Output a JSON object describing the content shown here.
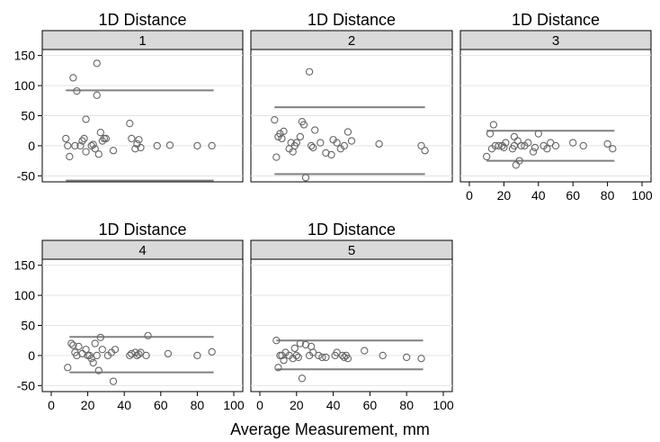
{
  "xlabel": "Average Measurement, mm",
  "chart_data": {
    "type": "scatter",
    "xlabel": "Average Measurement, mm",
    "ylabel": "",
    "xlim": [
      0,
      100
    ],
    "ylim": [
      -60,
      160
    ],
    "xticks": [
      "0",
      "20",
      "40",
      "60",
      "80",
      "100"
    ],
    "yticks": [
      "-50",
      "0",
      "50",
      "100",
      "150"
    ],
    "grid": "horizontal",
    "panels": [
      {
        "title": "1D Distance",
        "strip": "1",
        "upper_limit": 92,
        "lower_limit": -58,
        "line_x": [
          8,
          89
        ],
        "points": [
          [
            8,
            12
          ],
          [
            9,
            0
          ],
          [
            10,
            -18
          ],
          [
            12,
            113
          ],
          [
            13,
            0
          ],
          [
            14,
            91
          ],
          [
            16,
            0
          ],
          [
            17,
            8
          ],
          [
            18,
            12
          ],
          [
            19,
            44
          ],
          [
            19,
            -10
          ],
          [
            22,
            0
          ],
          [
            23,
            2
          ],
          [
            24,
            -5
          ],
          [
            25,
            137
          ],
          [
            25,
            84
          ],
          [
            26,
            -14
          ],
          [
            27,
            22
          ],
          [
            28,
            8
          ],
          [
            29,
            12
          ],
          [
            30,
            12
          ],
          [
            34,
            -8
          ],
          [
            43,
            37
          ],
          [
            44,
            12
          ],
          [
            46,
            -5
          ],
          [
            47,
            3
          ],
          [
            48,
            10
          ],
          [
            49,
            -3
          ],
          [
            58,
            0
          ],
          [
            65,
            1
          ],
          [
            80,
            0
          ],
          [
            88,
            0
          ]
        ]
      },
      {
        "title": "1D Distance",
        "strip": "2",
        "upper_limit": 64,
        "lower_limit": -47,
        "line_x": [
          8,
          90
        ],
        "points": [
          [
            8,
            43
          ],
          [
            9,
            -19
          ],
          [
            10,
            15
          ],
          [
            11,
            20
          ],
          [
            12,
            12
          ],
          [
            13,
            24
          ],
          [
            16,
            -5
          ],
          [
            17,
            5
          ],
          [
            18,
            -10
          ],
          [
            19,
            0
          ],
          [
            20,
            5
          ],
          [
            22,
            15
          ],
          [
            23,
            40
          ],
          [
            24,
            35
          ],
          [
            25,
            -53
          ],
          [
            27,
            123
          ],
          [
            28,
            0
          ],
          [
            29,
            -3
          ],
          [
            30,
            26
          ],
          [
            33,
            5
          ],
          [
            36,
            -12
          ],
          [
            39,
            -15
          ],
          [
            40,
            10
          ],
          [
            42,
            5
          ],
          [
            44,
            -5
          ],
          [
            46,
            0
          ],
          [
            48,
            23
          ],
          [
            50,
            8
          ],
          [
            65,
            3
          ],
          [
            88,
            0
          ],
          [
            90,
            -8
          ]
        ]
      },
      {
        "title": "1D Distance",
        "strip": "3",
        "upper_limit": 25,
        "lower_limit": -25,
        "line_x": [
          10,
          84
        ],
        "points": [
          [
            10,
            -18
          ],
          [
            12,
            20
          ],
          [
            13,
            -5
          ],
          [
            14,
            35
          ],
          [
            15,
            0
          ],
          [
            17,
            0
          ],
          [
            19,
            0
          ],
          [
            20,
            -3
          ],
          [
            21,
            5
          ],
          [
            25,
            -5
          ],
          [
            26,
            15
          ],
          [
            26,
            0
          ],
          [
            27,
            -32
          ],
          [
            28,
            8
          ],
          [
            29,
            -25
          ],
          [
            30,
            0
          ],
          [
            32,
            0
          ],
          [
            34,
            5
          ],
          [
            37,
            -10
          ],
          [
            38,
            -3
          ],
          [
            40,
            20
          ],
          [
            43,
            0
          ],
          [
            45,
            -5
          ],
          [
            47,
            5
          ],
          [
            50,
            0
          ],
          [
            60,
            5
          ],
          [
            66,
            0
          ],
          [
            80,
            3
          ],
          [
            83,
            -5
          ]
        ]
      },
      {
        "title": "1D Distance",
        "strip": "4",
        "upper_limit": 31,
        "lower_limit": -28,
        "line_x": [
          10,
          89
        ],
        "points": [
          [
            9,
            -20
          ],
          [
            11,
            20
          ],
          [
            12,
            17
          ],
          [
            13,
            5
          ],
          [
            14,
            0
          ],
          [
            15,
            15
          ],
          [
            17,
            3
          ],
          [
            19,
            10
          ],
          [
            20,
            0
          ],
          [
            21,
            0
          ],
          [
            22,
            -5
          ],
          [
            23,
            -12
          ],
          [
            24,
            20
          ],
          [
            25,
            0
          ],
          [
            26,
            -25
          ],
          [
            27,
            30
          ],
          [
            28,
            10
          ],
          [
            31,
            0
          ],
          [
            33,
            5
          ],
          [
            34,
            -43
          ],
          [
            35,
            10
          ],
          [
            43,
            0
          ],
          [
            44,
            3
          ],
          [
            46,
            5
          ],
          [
            47,
            0
          ],
          [
            48,
            2
          ],
          [
            49,
            5
          ],
          [
            52,
            0
          ],
          [
            53,
            33
          ],
          [
            64,
            3
          ],
          [
            80,
            0
          ],
          [
            88,
            6
          ]
        ]
      },
      {
        "title": "1D Distance",
        "strip": "5",
        "upper_limit": 25,
        "lower_limit": -23,
        "line_x": [
          9,
          89
        ],
        "points": [
          [
            9,
            25
          ],
          [
            10,
            -20
          ],
          [
            11,
            0
          ],
          [
            12,
            0
          ],
          [
            13,
            -8
          ],
          [
            14,
            5
          ],
          [
            16,
            0
          ],
          [
            18,
            -5
          ],
          [
            19,
            12
          ],
          [
            20,
            0
          ],
          [
            21,
            -3
          ],
          [
            22,
            20
          ],
          [
            23,
            -38
          ],
          [
            25,
            18
          ],
          [
            27,
            0
          ],
          [
            28,
            15
          ],
          [
            29,
            5
          ],
          [
            32,
            0
          ],
          [
            34,
            -3
          ],
          [
            36,
            -3
          ],
          [
            41,
            0
          ],
          [
            42,
            5
          ],
          [
            45,
            0
          ],
          [
            46,
            -3
          ],
          [
            47,
            0
          ],
          [
            48,
            -5
          ],
          [
            57,
            8
          ],
          [
            67,
            0
          ],
          [
            80,
            -3
          ],
          [
            88,
            -5
          ]
        ]
      }
    ]
  }
}
